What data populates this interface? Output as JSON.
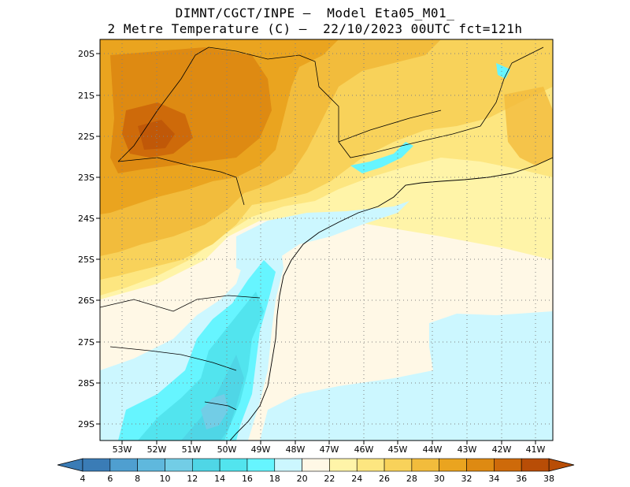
{
  "header": {
    "line1": "DIMNT/CGCT/INPE –  Model Eta05_M01_",
    "line2": "2 Metre Temperature (C) –  22/10/2023 00UTC fct=121h"
  },
  "map": {
    "lat_labels": [
      "20S",
      "21S",
      "22S",
      "23S",
      "24S",
      "25S",
      "26S",
      "27S",
      "28S",
      "29S"
    ],
    "lon_labels": [
      "53W",
      "52W",
      "51W",
      "50W",
      "49W",
      "48W",
      "47W",
      "46W",
      "45W",
      "44W",
      "43W",
      "42W",
      "41W"
    ]
  },
  "colorbar": {
    "ticks": [
      "4",
      "6",
      "8",
      "10",
      "12",
      "14",
      "16",
      "18",
      "20",
      "22",
      "24",
      "26",
      "28",
      "30",
      "32",
      "34",
      "36",
      "38"
    ],
    "colors": [
      "#3a7cb6",
      "#4f9fd0",
      "#5fb8dd",
      "#72cde6",
      "#4fd6e6",
      "#52e4ee",
      "#66f5ff",
      "#ccf7ff",
      "#fff8e6",
      "#fff4a8",
      "#fde680",
      "#f8d25a",
      "#f2bc3c",
      "#eaa41f",
      "#de8a12",
      "#ce6a0a",
      "#b84d06"
    ]
  }
}
